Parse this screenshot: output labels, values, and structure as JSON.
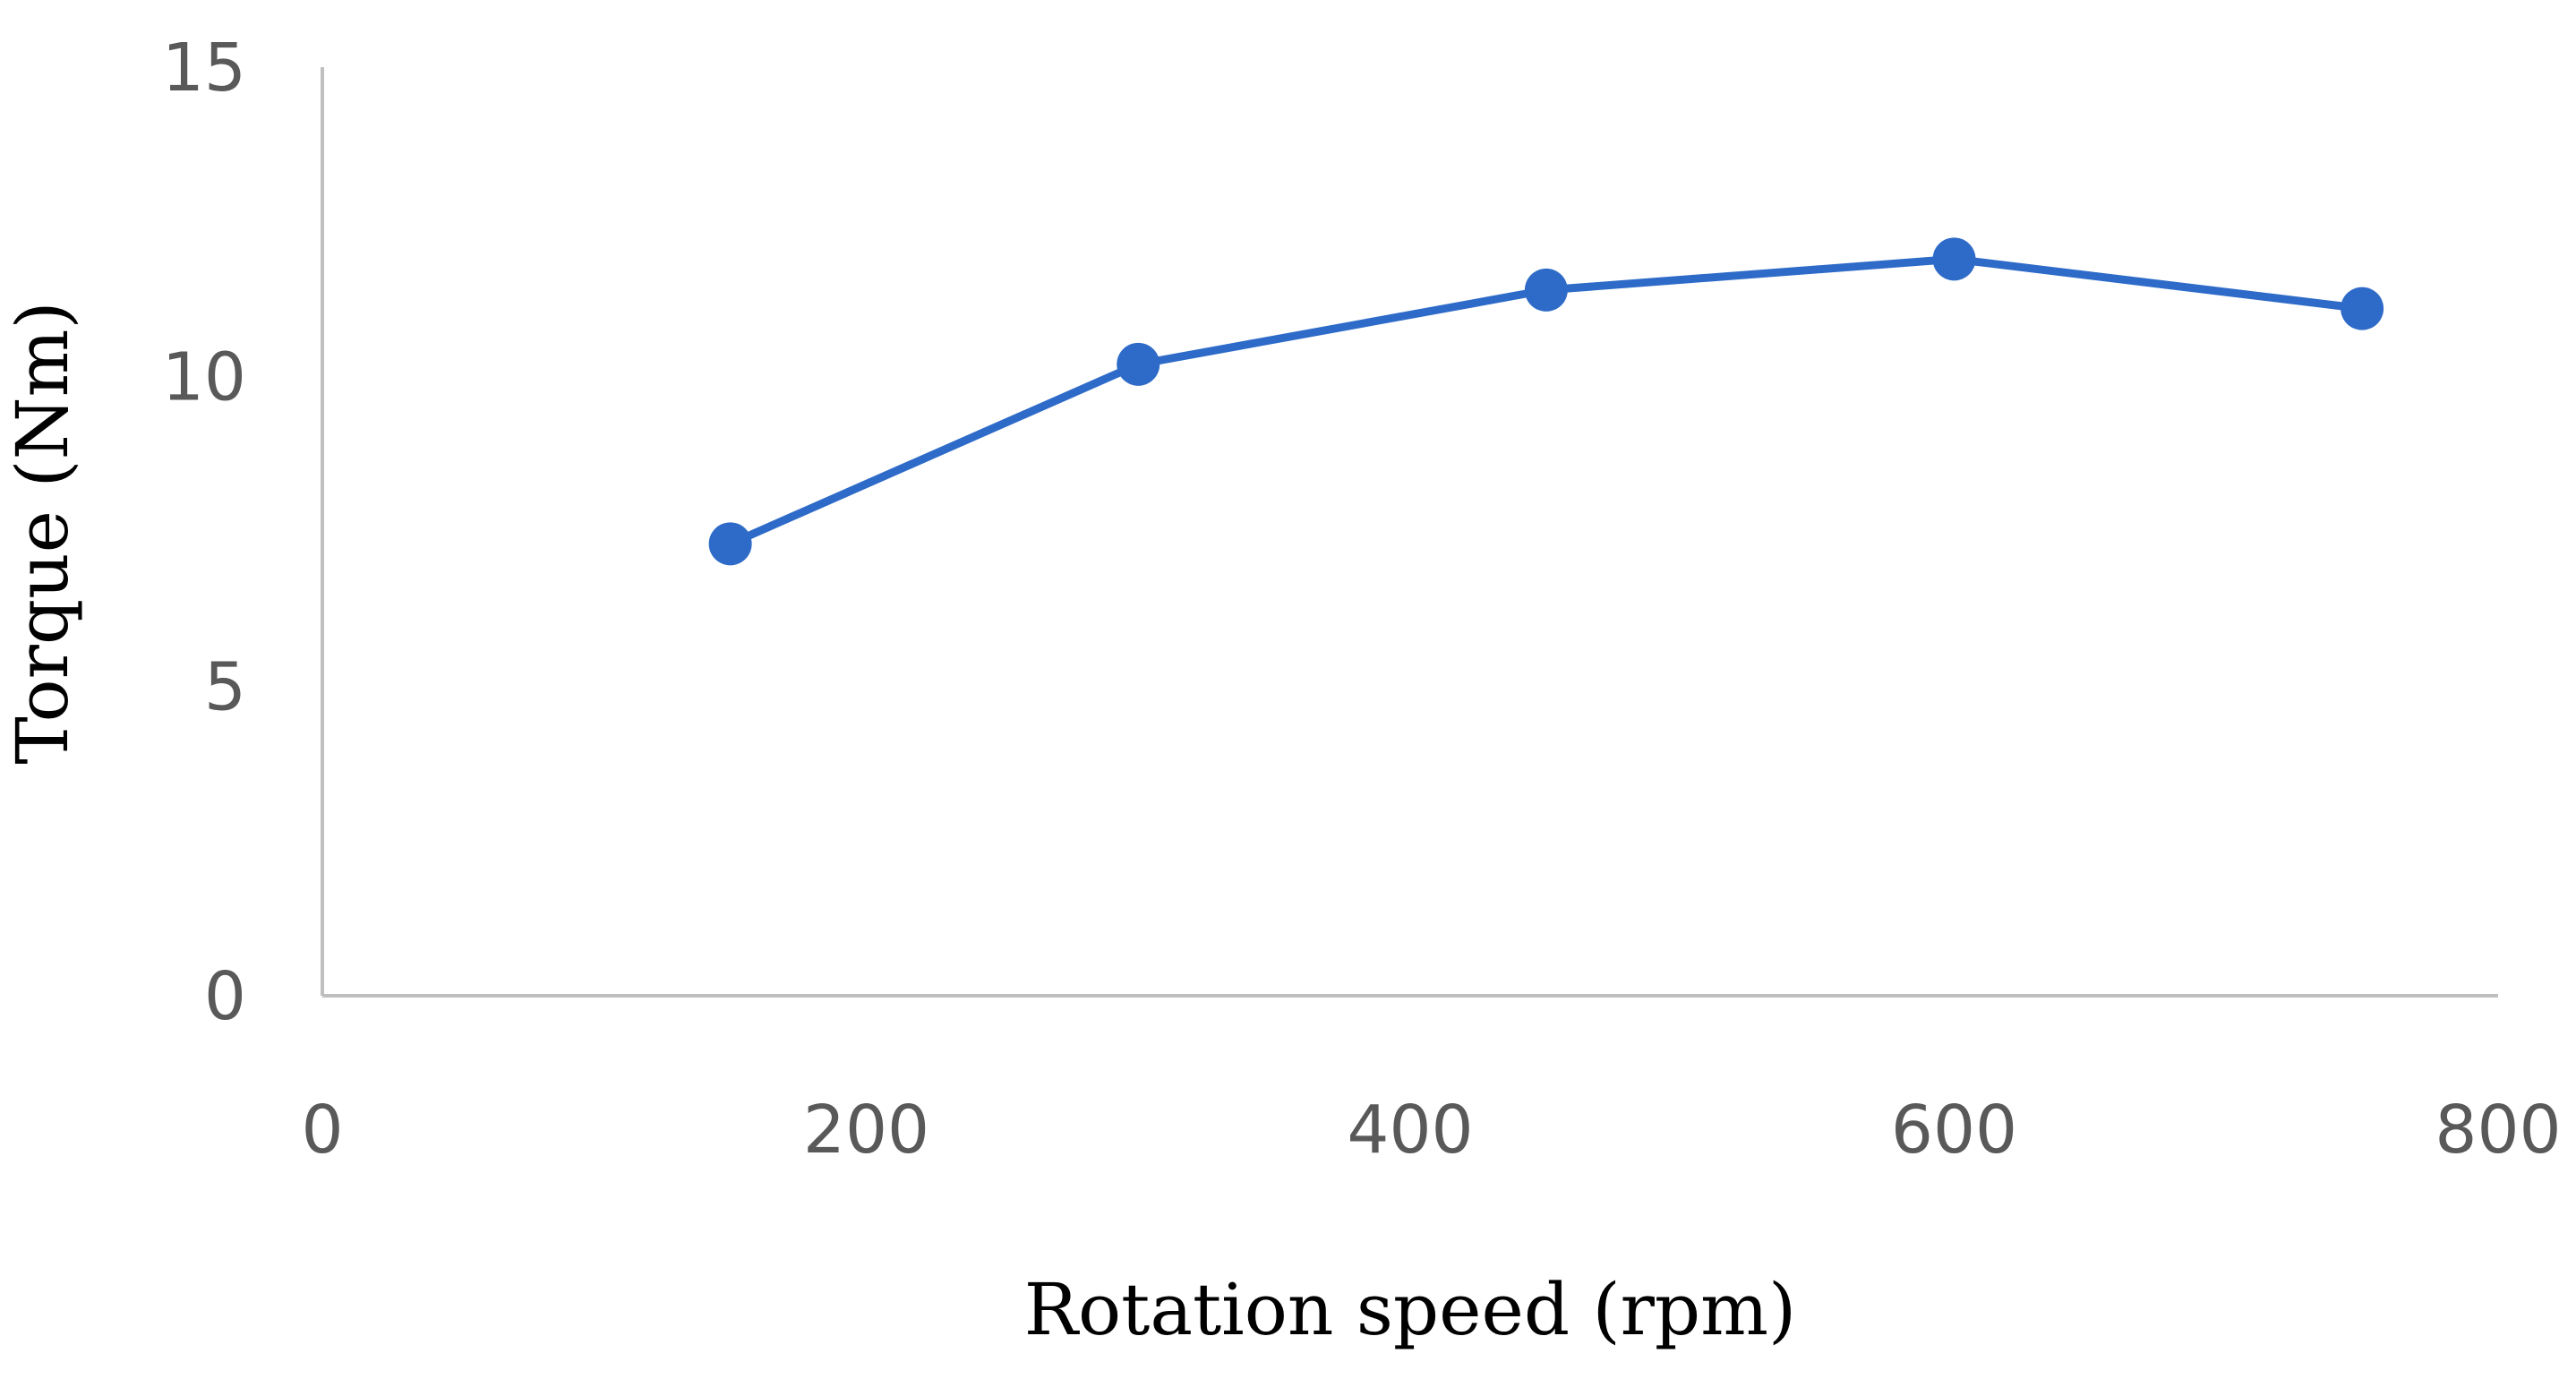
{
  "chart_data": {
    "type": "line",
    "title": "",
    "xlabel": "Rotation speed (rpm)",
    "ylabel": "Torque (Nm)",
    "xlim": [
      0,
      800
    ],
    "ylim": [
      0,
      15
    ],
    "xticks": [
      0,
      200,
      400,
      600,
      800
    ],
    "yticks": [
      0,
      5,
      10,
      15
    ],
    "grid": false,
    "legend": "none",
    "series": [
      {
        "color": "#2E6BC8",
        "marker": "circle",
        "x": [
          150,
          300,
          450,
          600,
          750
        ],
        "y": [
          7.3,
          10.2,
          11.4,
          11.9,
          11.1
        ]
      }
    ]
  }
}
